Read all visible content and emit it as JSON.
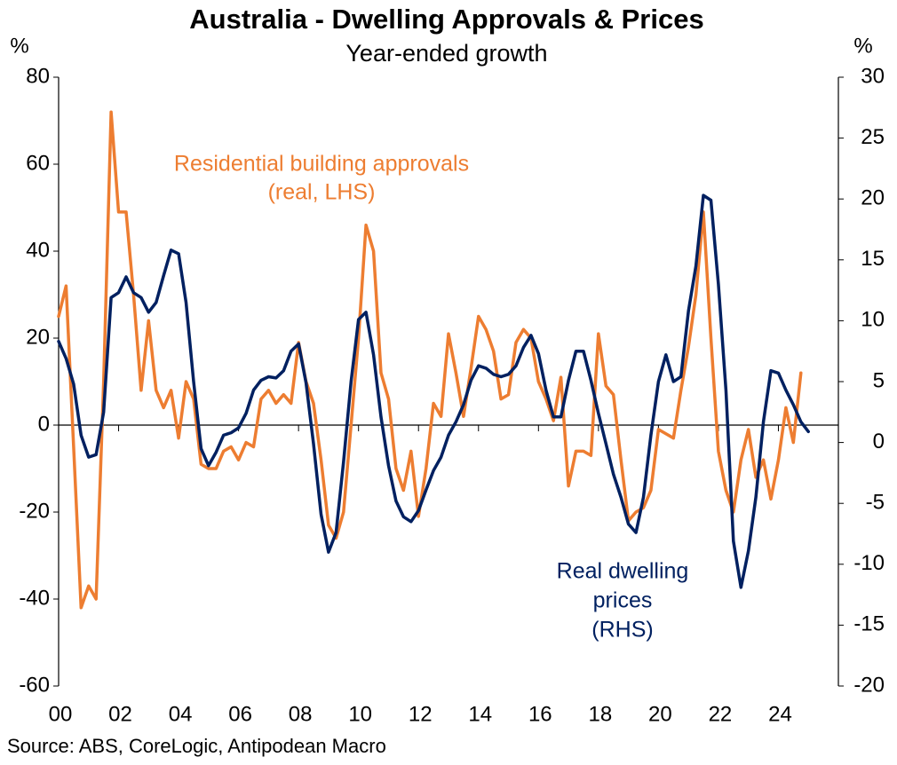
{
  "chart_data": {
    "type": "line",
    "title": "Australia - Dwelling Approvals & Prices",
    "subtitle": "Year-ended growth",
    "y_unit": "%",
    "y2_unit": "%",
    "source": "Source: ABS, CoreLogic, Antipodean Macro",
    "annotations": [
      [
        "Residential building approvals",
        "(real, LHS)"
      ],
      [
        "Real dwelling",
        "prices",
        "(RHS)"
      ]
    ],
    "xlim": [
      2000,
      2026
    ],
    "xticks": [
      {
        "value": 2000,
        "label": "00"
      },
      {
        "value": 2002,
        "label": "02"
      },
      {
        "value": 2004,
        "label": "04"
      },
      {
        "value": 2006,
        "label": "06"
      },
      {
        "value": 2008,
        "label": "08"
      },
      {
        "value": 2010,
        "label": "10"
      },
      {
        "value": 2012,
        "label": "12"
      },
      {
        "value": 2014,
        "label": "14"
      },
      {
        "value": 2016,
        "label": "16"
      },
      {
        "value": 2018,
        "label": "18"
      },
      {
        "value": 2020,
        "label": "20"
      },
      {
        "value": 2022,
        "label": "22"
      },
      {
        "value": 2024,
        "label": "24"
      }
    ],
    "ylim": [
      -60,
      80
    ],
    "yticks": [
      -60,
      -40,
      -20,
      0,
      20,
      40,
      60,
      80
    ],
    "y2lim": [
      -20,
      30
    ],
    "y2ticks": [
      -20,
      -15,
      -10,
      -5,
      0,
      5,
      10,
      15,
      20,
      25,
      30
    ],
    "series": [
      {
        "color": "#ED7D31",
        "x": [
          2000,
          2000.25,
          2000.5,
          2000.75,
          2001,
          2001.25,
          2001.5,
          2001.75,
          2002,
          2002.25,
          2002.5,
          2002.75,
          2003,
          2003.25,
          2003.5,
          2003.75,
          2004,
          2004.25,
          2004.5,
          2004.75,
          2005,
          2005.25,
          2005.5,
          2005.75,
          2006,
          2006.25,
          2006.5,
          2006.75,
          2007,
          2007.25,
          2007.5,
          2007.75,
          2008,
          2008.25,
          2008.5,
          2008.75,
          2009,
          2009.25,
          2009.5,
          2009.75,
          2010,
          2010.25,
          2010.5,
          2010.75,
          2011,
          2011.25,
          2011.5,
          2011.75,
          2012,
          2012.25,
          2012.5,
          2012.75,
          2013,
          2013.25,
          2013.5,
          2013.75,
          2014,
          2014.25,
          2014.5,
          2014.75,
          2015,
          2015.25,
          2015.5,
          2015.75,
          2016,
          2016.25,
          2016.5,
          2016.75,
          2017,
          2017.25,
          2017.5,
          2017.75,
          2018,
          2018.25,
          2018.5,
          2018.75,
          2019,
          2019.25,
          2019.5,
          2019.75,
          2020,
          2020.25,
          2020.5,
          2020.75,
          2021,
          2021.25,
          2021.5,
          2021.75,
          2022,
          2022.25,
          2022.5,
          2022.75,
          2023,
          2023.25,
          2023.5,
          2023.75,
          2024,
          2024.25,
          2024.5,
          2024.75
        ],
        "values": [
          25,
          32,
          -5,
          -42,
          -37,
          -40,
          10,
          72,
          49,
          49,
          30,
          8,
          24,
          8,
          4,
          8,
          -3,
          10,
          6,
          -9,
          -10,
          -10,
          -6,
          -5,
          -8,
          -4,
          -5,
          6,
          8,
          5,
          7,
          5,
          19,
          10,
          5,
          -8,
          -23,
          -26,
          -20,
          0,
          20,
          46,
          40,
          12,
          6,
          -10,
          -15,
          -6,
          -21,
          -10,
          5,
          2,
          21,
          12,
          2,
          13,
          25,
          22,
          17,
          6,
          7,
          19,
          22,
          20,
          10,
          6,
          1,
          11,
          -14,
          -6,
          -6,
          -7,
          21,
          9,
          7,
          -8,
          -22,
          -20,
          -19,
          -15,
          -1,
          -2,
          -3,
          8,
          18,
          30,
          49,
          20,
          -6,
          -15,
          -20,
          -8,
          -1,
          -12,
          -8,
          -17,
          -8,
          4,
          -4,
          12
        ]
      },
      {
        "color": "#002060",
        "axis": "y2",
        "x": [
          2000,
          2000.25,
          2000.5,
          2000.75,
          2001,
          2001.25,
          2001.5,
          2001.75,
          2002,
          2002.25,
          2002.5,
          2002.75,
          2003,
          2003.25,
          2003.5,
          2003.75,
          2004,
          2004.25,
          2004.5,
          2004.75,
          2005,
          2005.25,
          2005.5,
          2005.75,
          2006,
          2006.25,
          2006.5,
          2006.75,
          2007,
          2007.25,
          2007.5,
          2007.75,
          2008,
          2008.25,
          2008.5,
          2008.75,
          2009,
          2009.25,
          2009.5,
          2009.75,
          2010,
          2010.25,
          2010.5,
          2010.75,
          2011,
          2011.25,
          2011.5,
          2011.75,
          2012,
          2012.25,
          2012.5,
          2012.75,
          2013,
          2013.25,
          2013.5,
          2013.75,
          2014,
          2014.25,
          2014.5,
          2014.75,
          2015,
          2015.25,
          2015.5,
          2015.75,
          2016,
          2016.25,
          2016.5,
          2016.75,
          2017,
          2017.25,
          2017.5,
          2017.75,
          2018,
          2018.25,
          2018.5,
          2018.75,
          2019,
          2019.25,
          2019.5,
          2019.75,
          2020,
          2020.25,
          2020.5,
          2020.75,
          2021,
          2021.25,
          2021.5,
          2021.75,
          2022,
          2022.25,
          2022.5,
          2022.75,
          2023,
          2023.25,
          2023.5,
          2023.75,
          2024,
          2024.25,
          2024.5,
          2024.75,
          2025
        ],
        "values": [
          8.3,
          6.9,
          4.8,
          0.6,
          -1.2,
          -1.0,
          2.5,
          11.9,
          12.3,
          13.6,
          12.3,
          11.9,
          10.7,
          11.5,
          13.7,
          15.8,
          15.5,
          11.5,
          5.0,
          -0.5,
          -1.9,
          -0.8,
          0.6,
          0.8,
          1.2,
          2.4,
          4.3,
          5.1,
          5.4,
          5.3,
          5.9,
          7.5,
          8.1,
          4.9,
          -0.1,
          -5.9,
          -9.0,
          -7.4,
          -1.6,
          5.0,
          10.1,
          10.7,
          7.2,
          2.1,
          -1.9,
          -4.8,
          -6.1,
          -6.5,
          -5.6,
          -3.9,
          -2.3,
          -1.2,
          0.6,
          1.7,
          3.1,
          5.1,
          6.3,
          6.1,
          5.6,
          5.4,
          5.6,
          6.3,
          7.8,
          8.8,
          7.3,
          4.3,
          2.1,
          2.1,
          5.1,
          7.5,
          7.5,
          5.1,
          2.4,
          -0.1,
          -2.6,
          -4.5,
          -6.7,
          -7.4,
          -4.5,
          0.6,
          5.0,
          7.2,
          5.0,
          5.4,
          10.8,
          14.5,
          20.3,
          19.9,
          13.0,
          4.3,
          -8.1,
          -11.9,
          -8.9,
          -4.5,
          1.7,
          5.9,
          5.7,
          4.3,
          3.1,
          1.7,
          0.9
        ]
      }
    ]
  }
}
